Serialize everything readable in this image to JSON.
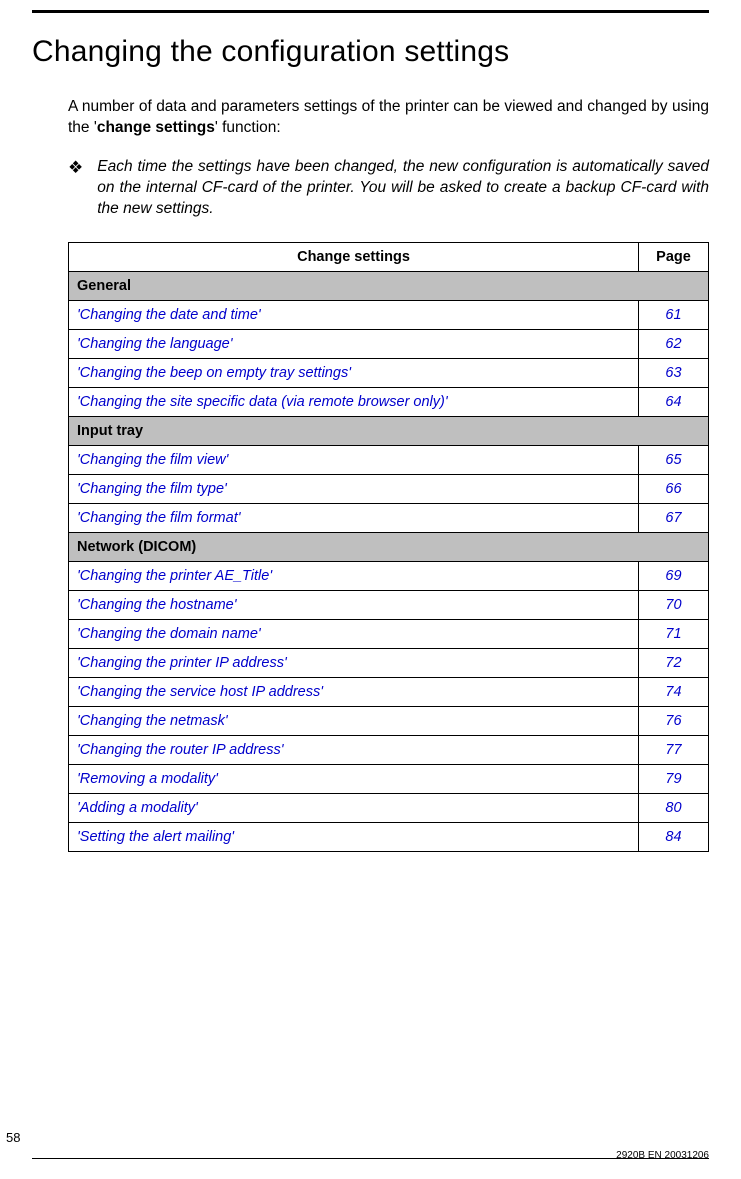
{
  "page": {
    "title": "Changing the configuration settings",
    "intro_prefix": "A number of data and parameters settings of the printer can be viewed and changed by using the '",
    "intro_bold": "change settings",
    "intro_suffix": "' function:",
    "note_icon": "❖",
    "note": "Each time the settings have been changed, the new configuration is automatically saved on the internal CF-card of the printer. You will be asked to create a backup CF-card with the new settings.",
    "page_number": "58",
    "doc_id": "2920B EN 20031206"
  },
  "table": {
    "header_settings": "Change settings",
    "header_page": "Page",
    "link_color": "#0000cc",
    "section_bg": "#bfbfbf",
    "rows": [
      {
        "type": "section",
        "label": "General"
      },
      {
        "type": "link",
        "label": "'Changing the date and time'",
        "page": "61"
      },
      {
        "type": "link",
        "label": "'Changing the language'",
        "page": "62"
      },
      {
        "type": "link",
        "label": "'Changing the beep on empty tray settings'",
        "page": "63"
      },
      {
        "type": "link",
        "label": "'Changing the site specific data (via remote browser only)'",
        "page": "64"
      },
      {
        "type": "section",
        "label": "Input tray"
      },
      {
        "type": "link",
        "label": "'Changing the film view'",
        "page": "65"
      },
      {
        "type": "link",
        "label": "'Changing the film type'",
        "page": "66"
      },
      {
        "type": "link",
        "label": "'Changing the film format'",
        "page": "67"
      },
      {
        "type": "section",
        "label": "Network (DICOM)"
      },
      {
        "type": "link",
        "label": "'Changing the printer AE_Title'",
        "page": "69"
      },
      {
        "type": "link",
        "label": "'Changing the hostname'",
        "page": "70"
      },
      {
        "type": "link",
        "label": "'Changing the domain name'",
        "page": "71"
      },
      {
        "type": "link",
        "label": "'Changing the printer IP address'",
        "page": "72"
      },
      {
        "type": "link",
        "label": "'Changing the service host IP address'",
        "page": "74"
      },
      {
        "type": "link",
        "label": "'Changing the netmask'",
        "page": "76"
      },
      {
        "type": "link",
        "label": "'Changing the router IP address'",
        "page": "77"
      },
      {
        "type": "link",
        "label": "'Removing a modality'",
        "page": "79"
      },
      {
        "type": "link",
        "label": "'Adding a modality'",
        "page": "80"
      },
      {
        "type": "link",
        "label": "'Setting the alert mailing'",
        "page": "84"
      }
    ]
  }
}
